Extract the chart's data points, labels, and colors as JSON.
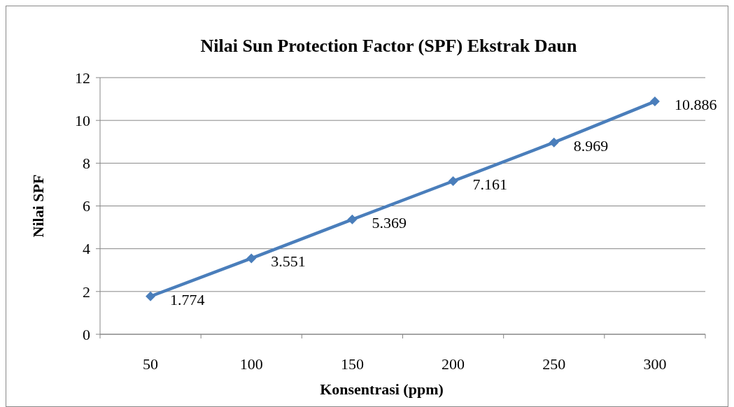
{
  "chart_data": {
    "type": "line",
    "title": "Nilai Sun Protection Factor (SPF) Ekstrak Daun",
    "xlabel": "Konsentrasi (ppm)",
    "ylabel": "Nilai SPF",
    "categories": [
      "50",
      "100",
      "150",
      "200",
      "250",
      "300"
    ],
    "series": [
      {
        "color": "#4a7ebb",
        "values": [
          1.774,
          3.551,
          5.369,
          7.161,
          8.969,
          10.886
        ]
      }
    ],
    "ylim": [
      0,
      12
    ],
    "yticks": [
      0,
      2,
      4,
      6,
      8,
      10,
      12
    ],
    "grid": "y",
    "marker": "diamond",
    "line_style": "solid",
    "data_labels": true
  }
}
